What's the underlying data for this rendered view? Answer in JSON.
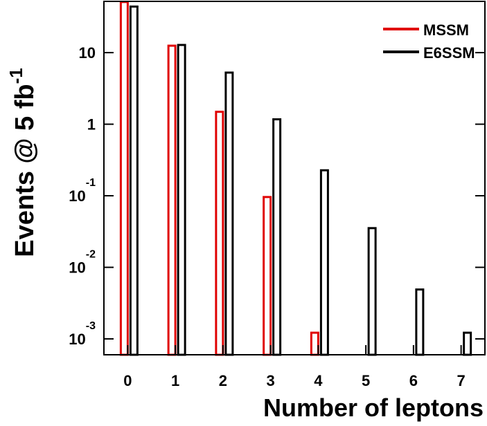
{
  "chart_data": {
    "type": "bar",
    "ylabel": "Events @ 5 fb",
    "ylabel_exponent": "-1",
    "xlabel": "Number of leptons",
    "categories": [
      "0",
      "1",
      "2",
      "3",
      "4",
      "5",
      "6",
      "7"
    ],
    "series": [
      {
        "name": "MSSM",
        "color": "#e00000",
        "values": [
          51,
          12.5,
          1.49,
          0.096,
          0.00122,
          null,
          null,
          null
        ]
      },
      {
        "name": "E6SSM",
        "color": "#000000",
        "values": [
          44,
          12.8,
          5.26,
          1.17,
          0.227,
          0.0353,
          0.0049,
          0.00122
        ]
      }
    ],
    "log_y": true,
    "ylim": [
      0.0006,
      52
    ],
    "yticks": [
      {
        "value": 0.001,
        "label": "10",
        "exponent": "-3"
      },
      {
        "value": 0.01,
        "label": "10",
        "exponent": "-2"
      },
      {
        "value": 0.1,
        "label": "10",
        "exponent": "-1"
      },
      1,
      10
    ],
    "legend": "top-right"
  }
}
